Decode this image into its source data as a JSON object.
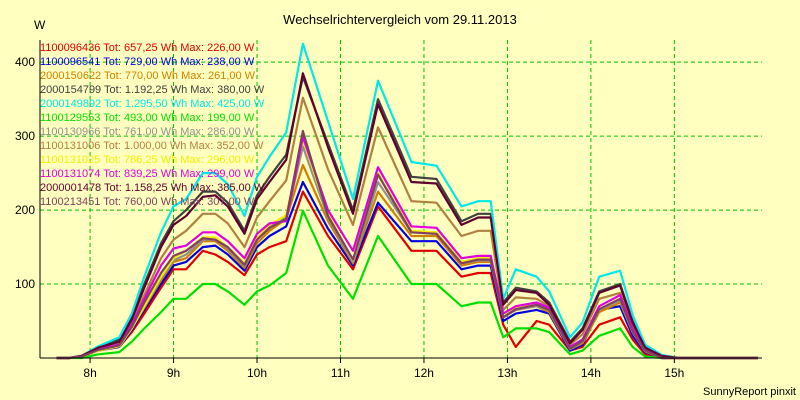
{
  "chart_data": {
    "type": "line",
    "title": "Wechselrichtervergleich vom 29.11.2013",
    "ylabel": "W",
    "footer": "SunnyReport pinxit",
    "ylim": [
      0,
      430
    ],
    "yticks": [
      100,
      200,
      300,
      400
    ],
    "xlim": [
      7.4,
      16.05
    ],
    "xticks": [
      {
        "x": 8,
        "label": "8h"
      },
      {
        "x": 9,
        "label": "9h"
      },
      {
        "x": 10,
        "label": "10h"
      },
      {
        "x": 11,
        "label": "11h"
      },
      {
        "x": 12,
        "label": "12h"
      },
      {
        "x": 13,
        "label": "13h"
      },
      {
        "x": 14,
        "label": "14h"
      },
      {
        "x": 15,
        "label": "15h"
      }
    ],
    "grid": true,
    "legend_position": "top-left",
    "x": [
      7.6,
      7.75,
      7.9,
      8.1,
      8.35,
      8.5,
      8.65,
      8.85,
      9.0,
      9.15,
      9.35,
      9.5,
      9.65,
      9.85,
      10.0,
      10.15,
      10.35,
      10.55,
      10.85,
      11.15,
      11.45,
      11.85,
      12.15,
      12.45,
      12.65,
      12.8,
      12.95,
      13.1,
      13.35,
      13.5,
      13.75,
      13.9,
      14.1,
      14.35,
      14.5,
      14.65,
      14.85,
      15.05,
      15.4,
      15.65,
      16.0
    ],
    "series": [
      {
        "name": "1100096436",
        "legend": "1100096436 Tot: 657,25 Wh Max: 226,00 W",
        "color": "#e00000",
        "values": [
          0,
          0,
          2,
          10,
          15,
          35,
          60,
          95,
          120,
          120,
          145,
          140,
          130,
          112,
          140,
          150,
          158,
          225,
          165,
          120,
          205,
          145,
          145,
          110,
          115,
          115,
          45,
          15,
          50,
          45,
          10,
          15,
          45,
          55,
          25,
          5,
          0,
          0,
          0,
          0,
          0
        ]
      },
      {
        "name": "1100096541",
        "legend": "1100096541 Tot: 729,00 Wh Max: 238,00 W",
        "color": "#0000e0",
        "values": [
          0,
          0,
          2,
          10,
          15,
          38,
          65,
          100,
          125,
          130,
          150,
          152,
          140,
          118,
          150,
          165,
          178,
          238,
          175,
          125,
          210,
          158,
          158,
          120,
          125,
          125,
          50,
          60,
          65,
          60,
          10,
          18,
          65,
          70,
          30,
          8,
          0,
          0,
          0,
          0,
          0
        ]
      },
      {
        "name": "2000150622",
        "legend": "2000150622 Tot: 770,00 Wh Max: 261,00 W",
        "color": "#d08000",
        "values": [
          0,
          0,
          2,
          10,
          16,
          40,
          68,
          105,
          130,
          135,
          158,
          158,
          145,
          122,
          155,
          172,
          188,
          261,
          185,
          128,
          225,
          165,
          165,
          125,
          130,
          130,
          55,
          65,
          70,
          62,
          12,
          20,
          62,
          75,
          35,
          9,
          0,
          0,
          0,
          0,
          0
        ]
      },
      {
        "name": "2000154799",
        "legend": "2000154799 Tot: 1.192,25 Wh Max: 380,00 W",
        "color": "#404040",
        "values": [
          0,
          0,
          3,
          15,
          25,
          55,
          100,
          155,
          185,
          200,
          225,
          225,
          210,
          172,
          220,
          245,
          275,
          380,
          290,
          200,
          350,
          245,
          242,
          185,
          195,
          195,
          75,
          95,
          90,
          75,
          22,
          40,
          90,
          100,
          50,
          15,
          3,
          0,
          0,
          0,
          0
        ]
      },
      {
        "name": "2000149892",
        "legend": "2000149892 Tot: 1.295,50 Wh Max: 425,00 W",
        "color": "#00e8e8",
        "values": [
          0,
          0,
          3,
          16,
          28,
          60,
          110,
          170,
          205,
          215,
          250,
          250,
          235,
          192,
          245,
          272,
          305,
          425,
          320,
          215,
          375,
          265,
          260,
          205,
          212,
          212,
          80,
          120,
          110,
          90,
          28,
          48,
          110,
          118,
          58,
          18,
          4,
          0,
          0,
          0,
          0
        ]
      },
      {
        "name": "1100129553",
        "legend": "1100129553 Tot: 493,00 Wh Max: 199,00 W",
        "color": "#00e000",
        "values": [
          0,
          0,
          0,
          5,
          8,
          22,
          40,
          62,
          80,
          80,
          100,
          100,
          90,
          72,
          90,
          98,
          115,
          199,
          125,
          80,
          165,
          100,
          100,
          70,
          75,
          75,
          28,
          40,
          40,
          35,
          5,
          10,
          30,
          40,
          15,
          2,
          0,
          0,
          0,
          0,
          0
        ]
      },
      {
        "name": "1100130966",
        "legend": "1100130966 Tot: 761,00 Wh Max: 286,00 W",
        "color": "#909090",
        "values": [
          0,
          0,
          2,
          10,
          16,
          40,
          70,
          108,
          132,
          140,
          160,
          160,
          148,
          125,
          160,
          178,
          190,
          286,
          190,
          130,
          238,
          170,
          168,
          128,
          132,
          132,
          55,
          65,
          70,
          65,
          12,
          22,
          65,
          78,
          35,
          10,
          0,
          0,
          0,
          0,
          0
        ]
      },
      {
        "name": "1100131006",
        "legend": "1100131006 Tot: 1.000,00 Wh Max: 352,00 W",
        "color": "#b08040",
        "values": [
          0,
          0,
          3,
          12,
          20,
          48,
          85,
          135,
          160,
          172,
          195,
          195,
          182,
          150,
          190,
          212,
          240,
          352,
          255,
          180,
          312,
          212,
          210,
          165,
          172,
          172,
          65,
          82,
          80,
          70,
          18,
          32,
          80,
          88,
          45,
          12,
          2,
          0,
          0,
          0,
          0
        ]
      },
      {
        "name": "1100131025",
        "legend": "1100131025 Tot: 786,25 Wh Max: 296,00 W",
        "color": "#f0f000",
        "values": [
          0,
          0,
          2,
          10,
          16,
          40,
          70,
          110,
          135,
          145,
          163,
          163,
          150,
          128,
          162,
          180,
          193,
          296,
          195,
          132,
          250,
          172,
          170,
          130,
          135,
          135,
          55,
          68,
          72,
          66,
          14,
          24,
          66,
          80,
          36,
          10,
          0,
          0,
          0,
          0,
          0
        ]
      },
      {
        "name": "1100131074",
        "legend": "1100131074 Tot: 839,25 Wh Max: 299,00 W",
        "color": "#e000e0",
        "values": [
          0,
          0,
          2,
          12,
          18,
          45,
          80,
          125,
          148,
          152,
          170,
          170,
          158,
          135,
          168,
          182,
          185,
          299,
          200,
          145,
          258,
          178,
          176,
          135,
          138,
          138,
          60,
          70,
          75,
          68,
          15,
          25,
          70,
          85,
          40,
          11,
          0,
          0,
          0,
          0,
          0
        ]
      },
      {
        "name": "2000001478",
        "legend": "2000001478 Tot: 1.158,25 Wh Max: 385,00 W",
        "color": "#600030",
        "values": [
          0,
          0,
          3,
          14,
          22,
          52,
          95,
          150,
          180,
          192,
          218,
          220,
          205,
          168,
          215,
          238,
          268,
          385,
          285,
          195,
          343,
          238,
          236,
          180,
          190,
          190,
          72,
          92,
          88,
          72,
          20,
          38,
          88,
          98,
          48,
          14,
          3,
          0,
          0,
          0,
          0
        ]
      },
      {
        "name": "1100213451",
        "legend": "1100213451 Tot: 760,00 Wh Max: 307,00 W",
        "color": "#804060",
        "values": [
          0,
          0,
          2,
          11,
          17,
          42,
          75,
          115,
          138,
          145,
          162,
          160,
          150,
          126,
          160,
          176,
          188,
          307,
          192,
          133,
          248,
          170,
          168,
          128,
          133,
          133,
          55,
          66,
          72,
          65,
          13,
          23,
          66,
          80,
          36,
          10,
          0,
          0,
          0,
          0,
          0
        ]
      }
    ]
  }
}
